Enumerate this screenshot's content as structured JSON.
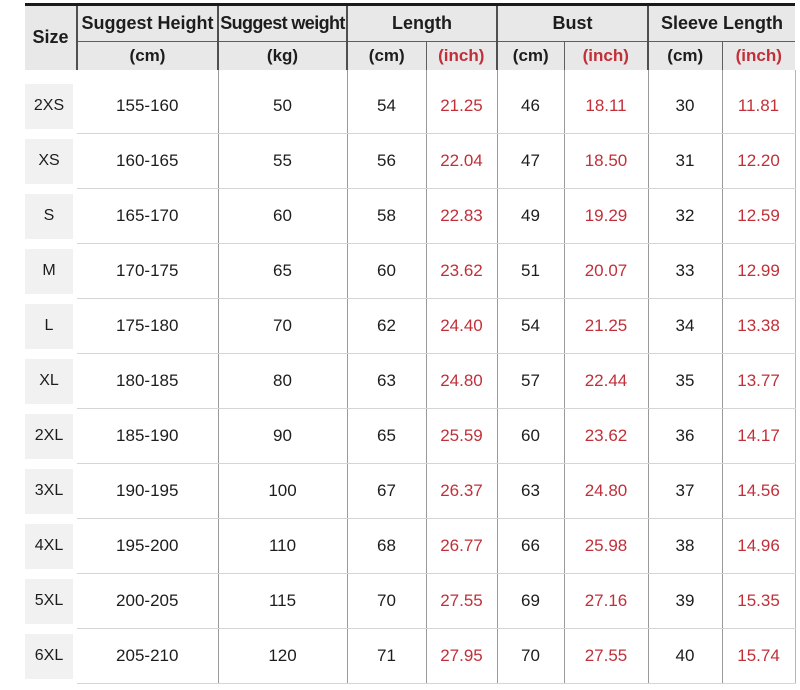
{
  "colors": {
    "accent_red": "#c13039",
    "header_bg": "#e8e8e8",
    "row_label_bg": "#f1f1f1"
  },
  "table": {
    "header": {
      "size_label": "Size",
      "suggest_height_label": "Suggest Height",
      "suggest_weight_label": "Suggest weight",
      "length_label": "Length",
      "bust_label": "Bust",
      "sleeve_length_label": "Sleeve Length",
      "unit_cm": "(cm)",
      "unit_kg": "(kg)",
      "unit_inch": "(inch)"
    }
  },
  "chart_data": {
    "type": "table",
    "title": "",
    "columns": [
      "Size",
      "Suggest Height (cm)",
      "Suggest weight (kg)",
      "Length (cm)",
      "Length (inch)",
      "Bust (cm)",
      "Bust (inch)",
      "Sleeve Length (cm)",
      "Sleeve Length (inch)"
    ],
    "rows": [
      [
        "2XS",
        "155-160",
        "50",
        "54",
        "21.25",
        "46",
        "18.11",
        "30",
        "11.81"
      ],
      [
        "XS",
        "160-165",
        "55",
        "56",
        "22.04",
        "47",
        "18.50",
        "31",
        "12.20"
      ],
      [
        "S",
        "165-170",
        "60",
        "58",
        "22.83",
        "49",
        "19.29",
        "32",
        "12.59"
      ],
      [
        "M",
        "170-175",
        "65",
        "60",
        "23.62",
        "51",
        "20.07",
        "33",
        "12.99"
      ],
      [
        "L",
        "175-180",
        "70",
        "62",
        "24.40",
        "54",
        "21.25",
        "34",
        "13.38"
      ],
      [
        "XL",
        "180-185",
        "80",
        "63",
        "24.80",
        "57",
        "22.44",
        "35",
        "13.77"
      ],
      [
        "2XL",
        "185-190",
        "90",
        "65",
        "25.59",
        "60",
        "23.62",
        "36",
        "14.17"
      ],
      [
        "3XL",
        "190-195",
        "100",
        "67",
        "26.37",
        "63",
        "24.80",
        "37",
        "14.56"
      ],
      [
        "4XL",
        "195-200",
        "110",
        "68",
        "26.77",
        "66",
        "25.98",
        "38",
        "14.96"
      ],
      [
        "5XL",
        "200-205",
        "115",
        "70",
        "27.55",
        "69",
        "27.16",
        "39",
        "15.35"
      ],
      [
        "6XL",
        "205-210",
        "120",
        "71",
        "27.95",
        "70",
        "27.55",
        "40",
        "15.74"
      ]
    ]
  }
}
